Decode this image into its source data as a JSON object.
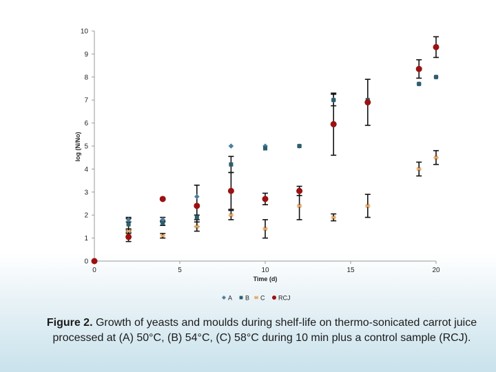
{
  "chart_data": {
    "type": "scatter",
    "title": "",
    "xlabel": "Time (d)",
    "ylabel": "log (N/No)",
    "xlim": [
      0,
      20
    ],
    "ylim": [
      0,
      10
    ],
    "xticks": [
      0,
      5,
      10,
      15,
      20
    ],
    "yticks": [
      0,
      1,
      2,
      3,
      4,
      5,
      6,
      7,
      8,
      9,
      10
    ],
    "legend_position": "bottom",
    "series": [
      {
        "name": "A",
        "color": "#4a7fa0",
        "marker": "diamond",
        "points": [
          {
            "x": 0,
            "y": 0,
            "err": 0
          },
          {
            "x": 2,
            "y": 1.8,
            "err": 0.1
          },
          {
            "x": 4,
            "y": 1.8,
            "err": 0.1
          },
          {
            "x": 6,
            "y": 2.8,
            "err": 0
          },
          {
            "x": 8,
            "y": 5.0,
            "err": 0
          },
          {
            "x": 10,
            "y": 5.0,
            "err": 0
          },
          {
            "x": 12,
            "y": 5.0,
            "err": 0
          },
          {
            "x": 14,
            "y": 7.0,
            "err": 0
          },
          {
            "x": 19,
            "y": 7.7,
            "err": 0
          },
          {
            "x": 20,
            "y": 8.0,
            "err": 0
          }
        ]
      },
      {
        "name": "B",
        "color": "#2e5e6e",
        "marker": "square",
        "points": [
          {
            "x": 0,
            "y": 0,
            "err": 0
          },
          {
            "x": 2,
            "y": 1.6,
            "err": 0.25
          },
          {
            "x": 4,
            "y": 1.65,
            "err": 0.1
          },
          {
            "x": 6,
            "y": 1.9,
            "err": 0.1
          },
          {
            "x": 8,
            "y": 4.2,
            "err": 0.35
          },
          {
            "x": 10,
            "y": 4.9,
            "err": 0
          },
          {
            "x": 12,
            "y": 5.0,
            "err": 0
          },
          {
            "x": 14,
            "y": 7.0,
            "err": 0.25
          },
          {
            "x": 16,
            "y": 7.0,
            "err": 0
          },
          {
            "x": 19,
            "y": 7.7,
            "err": 0
          },
          {
            "x": 20,
            "y": 8.0,
            "err": 0
          }
        ]
      },
      {
        "name": "C",
        "color": "#e8a865",
        "marker": "star",
        "points": [
          {
            "x": 0,
            "y": 0,
            "err": 0
          },
          {
            "x": 2,
            "y": 1.3,
            "err": 0.1
          },
          {
            "x": 4,
            "y": 1.1,
            "err": 0.1
          },
          {
            "x": 6,
            "y": 1.5,
            "err": 0.2
          },
          {
            "x": 8,
            "y": 2.0,
            "err": 0.2
          },
          {
            "x": 10,
            "y": 1.4,
            "err": 0.4
          },
          {
            "x": 12,
            "y": 2.4,
            "err": 0.6
          },
          {
            "x": 14,
            "y": 1.9,
            "err": 0.15
          },
          {
            "x": 16,
            "y": 2.4,
            "err": 0.5
          },
          {
            "x": 19,
            "y": 4.0,
            "err": 0.3
          },
          {
            "x": 20,
            "y": 4.5,
            "err": 0.3
          }
        ]
      },
      {
        "name": "RCJ",
        "color": "#9b1111",
        "marker": "circle",
        "points": [
          {
            "x": 0,
            "y": 0,
            "err": 0
          },
          {
            "x": 2,
            "y": 1.05,
            "err": 0.2
          },
          {
            "x": 4,
            "y": 2.7,
            "err": 0
          },
          {
            "x": 6,
            "y": 2.4,
            "err": 0.9
          },
          {
            "x": 8,
            "y": 3.05,
            "err": 0.8
          },
          {
            "x": 10,
            "y": 2.7,
            "err": 0.25
          },
          {
            "x": 12,
            "y": 3.05,
            "err": 0.2
          },
          {
            "x": 14,
            "y": 5.95,
            "err": 1.35
          },
          {
            "x": 16,
            "y": 6.9,
            "err": 1.0
          },
          {
            "x": 19,
            "y": 8.35,
            "err": 0.4
          },
          {
            "x": 20,
            "y": 9.3,
            "err": 0.45
          }
        ]
      }
    ]
  },
  "caption": {
    "label": "Figure 2.",
    "text": " Growth of yeasts and moulds during shelf-life on thermo-sonicated carrot juice processed at (A) 50°C, (B) 54°C, (C) 58°C during 10 min plus a control sample (RCJ)."
  }
}
